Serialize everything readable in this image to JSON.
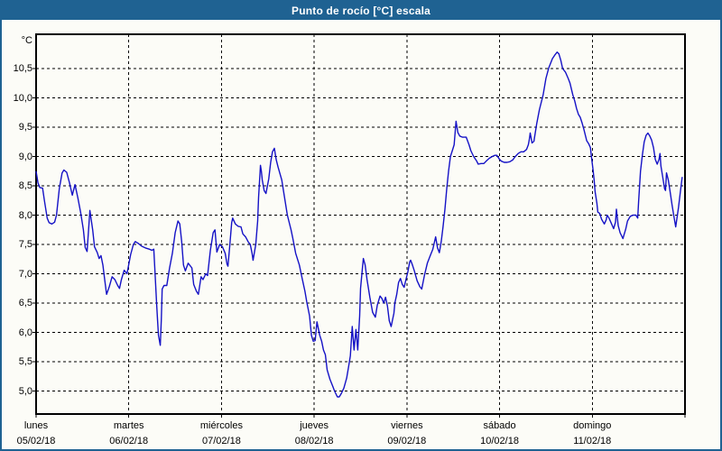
{
  "window": {
    "title": "Punto de rocío [°C] escala"
  },
  "colors": {
    "titlebar_bg": "#1f6292",
    "titlebar_text": "#ffffff",
    "window_border": "#1f6292",
    "background": "#fcfcf7",
    "grid": "#000000",
    "axis_border": "#000000",
    "line": "#1512c6"
  },
  "chart_data": {
    "type": "line",
    "title": "Punto de rocío [°C] escala",
    "y_unit": "°C",
    "ylabel": "",
    "xlabel": "",
    "grid": "dashed",
    "legend": "none",
    "ylim_visible": [
      4.6,
      11.1
    ],
    "x_range_days": [
      0,
      7
    ],
    "y_ticks": [
      {
        "value": 10.5,
        "label": "10,5"
      },
      {
        "value": 10.0,
        "label": "10,0"
      },
      {
        "value": 9.5,
        "label": "9,5"
      },
      {
        "value": 9.0,
        "label": "9,0"
      },
      {
        "value": 8.5,
        "label": "8,5"
      },
      {
        "value": 8.0,
        "label": "8,0"
      },
      {
        "value": 7.5,
        "label": "7,5"
      },
      {
        "value": 7.0,
        "label": "7,0"
      },
      {
        "value": 6.5,
        "label": "6,5"
      },
      {
        "value": 6.0,
        "label": "6,0"
      },
      {
        "value": 5.5,
        "label": "5,5"
      },
      {
        "value": 5.0,
        "label": "5,0"
      }
    ],
    "x_days": [
      {
        "name": "lunes",
        "date": "05/02/18"
      },
      {
        "name": "martes",
        "date": "06/02/18"
      },
      {
        "name": "miércoles",
        "date": "07/02/18"
      },
      {
        "name": "jueves",
        "date": "08/02/18"
      },
      {
        "name": "viernes",
        "date": "09/02/18"
      },
      {
        "name": "sábado",
        "date": "10/02/18"
      },
      {
        "name": "domingo",
        "date": "11/02/18"
      }
    ],
    "series": [
      {
        "name": "Punto de rocío [°C]",
        "color": "#1512c6",
        "points": [
          [
            0.0,
            8.75
          ],
          [
            0.02,
            8.55
          ],
          [
            0.04,
            8.47
          ],
          [
            0.07,
            8.46
          ],
          [
            0.09,
            8.25
          ],
          [
            0.12,
            7.95
          ],
          [
            0.14,
            7.87
          ],
          [
            0.17,
            7.85
          ],
          [
            0.2,
            7.88
          ],
          [
            0.22,
            8.0
          ],
          [
            0.25,
            8.45
          ],
          [
            0.28,
            8.72
          ],
          [
            0.3,
            8.77
          ],
          [
            0.33,
            8.73
          ],
          [
            0.36,
            8.55
          ],
          [
            0.39,
            8.34
          ],
          [
            0.42,
            8.52
          ],
          [
            0.45,
            8.3
          ],
          [
            0.48,
            8.05
          ],
          [
            0.51,
            7.75
          ],
          [
            0.53,
            7.45
          ],
          [
            0.55,
            7.38
          ],
          [
            0.58,
            8.08
          ],
          [
            0.61,
            7.75
          ],
          [
            0.63,
            7.46
          ],
          [
            0.66,
            7.36
          ],
          [
            0.68,
            7.26
          ],
          [
            0.7,
            7.31
          ],
          [
            0.72,
            7.15
          ],
          [
            0.74,
            6.9
          ],
          [
            0.76,
            6.65
          ],
          [
            0.79,
            6.78
          ],
          [
            0.82,
            6.95
          ],
          [
            0.85,
            6.9
          ],
          [
            0.88,
            6.8
          ],
          [
            0.9,
            6.75
          ],
          [
            0.92,
            6.9
          ],
          [
            0.95,
            7.06
          ],
          [
            0.98,
            7.0
          ],
          [
            1.02,
            7.33
          ],
          [
            1.05,
            7.5
          ],
          [
            1.07,
            7.55
          ],
          [
            1.1,
            7.52
          ],
          [
            1.14,
            7.47
          ],
          [
            1.18,
            7.44
          ],
          [
            1.22,
            7.42
          ],
          [
            1.25,
            7.4
          ],
          [
            1.27,
            7.42
          ],
          [
            1.28,
            7.1
          ],
          [
            1.3,
            6.5
          ],
          [
            1.31,
            6.2
          ],
          [
            1.32,
            5.95
          ],
          [
            1.34,
            5.78
          ],
          [
            1.35,
            6.2
          ],
          [
            1.36,
            6.74
          ],
          [
            1.38,
            6.8
          ],
          [
            1.41,
            6.8
          ],
          [
            1.44,
            7.1
          ],
          [
            1.47,
            7.35
          ],
          [
            1.5,
            7.7
          ],
          [
            1.53,
            7.9
          ],
          [
            1.55,
            7.85
          ],
          [
            1.57,
            7.55
          ],
          [
            1.59,
            7.15
          ],
          [
            1.61,
            7.05
          ],
          [
            1.64,
            7.18
          ],
          [
            1.68,
            7.1
          ],
          [
            1.7,
            6.82
          ],
          [
            1.73,
            6.7
          ],
          [
            1.75,
            6.65
          ],
          [
            1.78,
            6.95
          ],
          [
            1.8,
            6.9
          ],
          [
            1.83,
            7.0
          ],
          [
            1.85,
            6.97
          ],
          [
            1.88,
            7.4
          ],
          [
            1.91,
            7.7
          ],
          [
            1.93,
            7.75
          ],
          [
            1.95,
            7.37
          ],
          [
            1.98,
            7.5
          ],
          [
            2.01,
            7.46
          ],
          [
            2.04,
            7.35
          ],
          [
            2.06,
            7.16
          ],
          [
            2.07,
            7.13
          ],
          [
            2.09,
            7.5
          ],
          [
            2.11,
            7.87
          ],
          [
            2.12,
            7.95
          ],
          [
            2.15,
            7.85
          ],
          [
            2.18,
            7.81
          ],
          [
            2.21,
            7.8
          ],
          [
            2.23,
            7.68
          ],
          [
            2.26,
            7.63
          ],
          [
            2.29,
            7.54
          ],
          [
            2.31,
            7.5
          ],
          [
            2.33,
            7.35
          ],
          [
            2.34,
            7.23
          ],
          [
            2.37,
            7.5
          ],
          [
            2.39,
            7.9
          ],
          [
            2.4,
            8.3
          ],
          [
            2.42,
            8.85
          ],
          [
            2.43,
            8.75
          ],
          [
            2.44,
            8.6
          ],
          [
            2.46,
            8.42
          ],
          [
            2.48,
            8.37
          ],
          [
            2.51,
            8.62
          ],
          [
            2.53,
            8.9
          ],
          [
            2.55,
            9.08
          ],
          [
            2.57,
            9.14
          ],
          [
            2.59,
            8.95
          ],
          [
            2.61,
            8.82
          ],
          [
            2.65,
            8.6
          ],
          [
            2.68,
            8.3
          ],
          [
            2.71,
            8.0
          ],
          [
            2.75,
            7.75
          ],
          [
            2.77,
            7.6
          ],
          [
            2.8,
            7.35
          ],
          [
            2.84,
            7.15
          ],
          [
            2.87,
            6.92
          ],
          [
            2.9,
            6.7
          ],
          [
            2.92,
            6.52
          ],
          [
            2.95,
            6.28
          ],
          [
            2.97,
            5.95
          ],
          [
            2.99,
            5.85
          ],
          [
            3.01,
            5.86
          ],
          [
            3.03,
            6.18
          ],
          [
            3.06,
            5.95
          ],
          [
            3.08,
            5.85
          ],
          [
            3.1,
            5.7
          ],
          [
            3.12,
            5.62
          ],
          [
            3.14,
            5.36
          ],
          [
            3.17,
            5.2
          ],
          [
            3.2,
            5.08
          ],
          [
            3.22,
            5.0
          ],
          [
            3.25,
            4.9
          ],
          [
            3.27,
            4.9
          ],
          [
            3.29,
            4.95
          ],
          [
            3.32,
            5.05
          ],
          [
            3.35,
            5.22
          ],
          [
            3.37,
            5.4
          ],
          [
            3.39,
            5.6
          ],
          [
            3.41,
            6.1
          ],
          [
            3.43,
            5.7
          ],
          [
            3.45,
            6.05
          ],
          [
            3.47,
            5.7
          ],
          [
            3.49,
            6.28
          ],
          [
            3.5,
            6.75
          ],
          [
            3.52,
            7.1
          ],
          [
            3.53,
            7.26
          ],
          [
            3.55,
            7.15
          ],
          [
            3.57,
            6.9
          ],
          [
            3.6,
            6.6
          ],
          [
            3.63,
            6.34
          ],
          [
            3.66,
            6.26
          ],
          [
            3.68,
            6.46
          ],
          [
            3.71,
            6.62
          ],
          [
            3.73,
            6.58
          ],
          [
            3.75,
            6.5
          ],
          [
            3.77,
            6.6
          ],
          [
            3.79,
            6.45
          ],
          [
            3.81,
            6.2
          ],
          [
            3.83,
            6.1
          ],
          [
            3.86,
            6.33
          ],
          [
            3.87,
            6.5
          ],
          [
            3.89,
            6.65
          ],
          [
            3.91,
            6.85
          ],
          [
            3.93,
            6.92
          ],
          [
            3.95,
            6.82
          ],
          [
            3.97,
            6.77
          ],
          [
            3.99,
            6.9
          ],
          [
            4.01,
            7.03
          ],
          [
            4.03,
            7.2
          ],
          [
            4.04,
            7.23
          ],
          [
            4.06,
            7.15
          ],
          [
            4.08,
            7.05
          ],
          [
            4.11,
            6.88
          ],
          [
            4.14,
            6.78
          ],
          [
            4.16,
            6.74
          ],
          [
            4.19,
            6.98
          ],
          [
            4.22,
            7.18
          ],
          [
            4.25,
            7.3
          ],
          [
            4.28,
            7.42
          ],
          [
            4.31,
            7.63
          ],
          [
            4.33,
            7.44
          ],
          [
            4.35,
            7.36
          ],
          [
            4.37,
            7.55
          ],
          [
            4.39,
            7.8
          ],
          [
            4.41,
            8.1
          ],
          [
            4.43,
            8.45
          ],
          [
            4.45,
            8.76
          ],
          [
            4.47,
            9.0
          ],
          [
            4.49,
            9.1
          ],
          [
            4.51,
            9.2
          ],
          [
            4.53,
            9.6
          ],
          [
            4.55,
            9.41
          ],
          [
            4.57,
            9.35
          ],
          [
            4.6,
            9.33
          ],
          [
            4.64,
            9.33
          ],
          [
            4.67,
            9.2
          ],
          [
            4.69,
            9.1
          ],
          [
            4.72,
            9.0
          ],
          [
            4.75,
            8.93
          ],
          [
            4.77,
            8.87
          ],
          [
            4.8,
            8.88
          ],
          [
            4.83,
            8.88
          ],
          [
            4.86,
            8.93
          ],
          [
            4.89,
            8.97
          ],
          [
            4.92,
            9.0
          ],
          [
            4.95,
            9.02
          ],
          [
            4.97,
            9.02
          ],
          [
            5.0,
            8.95
          ],
          [
            5.02,
            8.92
          ],
          [
            5.05,
            8.9
          ],
          [
            5.08,
            8.9
          ],
          [
            5.11,
            8.91
          ],
          [
            5.14,
            8.94
          ],
          [
            5.17,
            9.0
          ],
          [
            5.2,
            9.05
          ],
          [
            5.23,
            9.08
          ],
          [
            5.26,
            9.08
          ],
          [
            5.29,
            9.12
          ],
          [
            5.31,
            9.2
          ],
          [
            5.32,
            9.28
          ],
          [
            5.33,
            9.4
          ],
          [
            5.35,
            9.23
          ],
          [
            5.37,
            9.26
          ],
          [
            5.4,
            9.56
          ],
          [
            5.43,
            9.8
          ],
          [
            5.47,
            10.05
          ],
          [
            5.5,
            10.33
          ],
          [
            5.53,
            10.51
          ],
          [
            5.57,
            10.67
          ],
          [
            5.6,
            10.74
          ],
          [
            5.62,
            10.78
          ],
          [
            5.64,
            10.75
          ],
          [
            5.66,
            10.64
          ],
          [
            5.68,
            10.5
          ],
          [
            5.71,
            10.44
          ],
          [
            5.74,
            10.33
          ],
          [
            5.76,
            10.25
          ],
          [
            5.79,
            10.05
          ],
          [
            5.81,
            9.95
          ],
          [
            5.83,
            9.82
          ],
          [
            5.85,
            9.72
          ],
          [
            5.87,
            9.67
          ],
          [
            5.89,
            9.57
          ],
          [
            5.91,
            9.46
          ],
          [
            5.94,
            9.27
          ],
          [
            5.96,
            9.22
          ],
          [
            5.98,
            9.15
          ],
          [
            5.99,
            9.0
          ],
          [
            6.01,
            8.75
          ],
          [
            6.02,
            8.6
          ],
          [
            6.03,
            8.4
          ],
          [
            6.05,
            8.2
          ],
          [
            6.06,
            8.05
          ],
          [
            6.08,
            8.03
          ],
          [
            6.1,
            7.93
          ],
          [
            6.13,
            7.85
          ],
          [
            6.15,
            7.92
          ],
          [
            6.16,
            8.0
          ],
          [
            6.18,
            7.95
          ],
          [
            6.2,
            7.88
          ],
          [
            6.23,
            7.77
          ],
          [
            6.25,
            7.88
          ],
          [
            6.26,
            8.1
          ],
          [
            6.28,
            7.82
          ],
          [
            6.3,
            7.7
          ],
          [
            6.33,
            7.6
          ],
          [
            6.36,
            7.76
          ],
          [
            6.38,
            7.9
          ],
          [
            6.41,
            7.98
          ],
          [
            6.44,
            8.0
          ],
          [
            6.47,
            8.0
          ],
          [
            6.49,
            7.95
          ],
          [
            6.5,
            8.23
          ],
          [
            6.52,
            8.75
          ],
          [
            6.54,
            9.03
          ],
          [
            6.56,
            9.25
          ],
          [
            6.58,
            9.36
          ],
          [
            6.6,
            9.4
          ],
          [
            6.62,
            9.35
          ],
          [
            6.64,
            9.28
          ],
          [
            6.66,
            9.15
          ],
          [
            6.68,
            8.95
          ],
          [
            6.7,
            8.87
          ],
          [
            6.72,
            8.95
          ],
          [
            6.73,
            9.05
          ],
          [
            6.74,
            8.84
          ],
          [
            6.76,
            8.65
          ],
          [
            6.78,
            8.45
          ],
          [
            6.79,
            8.42
          ],
          [
            6.8,
            8.72
          ],
          [
            6.82,
            8.6
          ],
          [
            6.84,
            8.39
          ],
          [
            6.86,
            8.18
          ],
          [
            6.88,
            7.98
          ],
          [
            6.9,
            7.8
          ],
          [
            6.93,
            8.13
          ],
          [
            6.95,
            8.4
          ],
          [
            6.97,
            8.65
          ]
        ]
      }
    ]
  }
}
